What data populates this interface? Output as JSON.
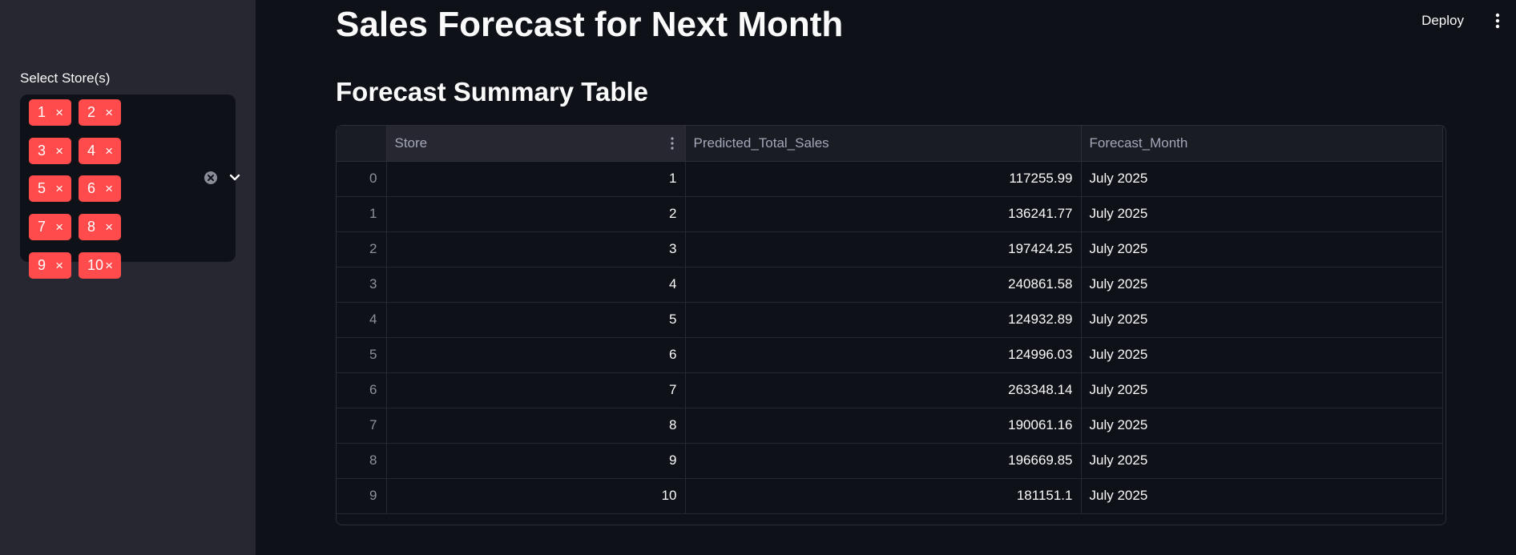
{
  "sidebar": {
    "multiselect": {
      "label": "Select Store(s)",
      "chips": [
        "1",
        "2",
        "3",
        "4",
        "5",
        "6",
        "7",
        "8",
        "9",
        "10"
      ],
      "chip_remove_glyph": "×",
      "clear_icon": "clear-circle-icon",
      "dropdown_icon": "chevron-down-icon"
    }
  },
  "header": {
    "deploy_label": "Deploy",
    "menu_icon": "vertical-kebab-icon"
  },
  "main": {
    "title": "Sales Forecast for Next Month",
    "subtitle": "Forecast Summary Table"
  },
  "table": {
    "columns": [
      "",
      "Store",
      "Predicted_Total_Sales",
      "Forecast_Month"
    ],
    "rows": [
      {
        "index": "0",
        "store": "1",
        "sales": "117255.99",
        "month": "July 2025"
      },
      {
        "index": "1",
        "store": "2",
        "sales": "136241.77",
        "month": "July 2025"
      },
      {
        "index": "2",
        "store": "3",
        "sales": "197424.25",
        "month": "July 2025"
      },
      {
        "index": "3",
        "store": "4",
        "sales": "240861.58",
        "month": "July 2025"
      },
      {
        "index": "4",
        "store": "5",
        "sales": "124932.89",
        "month": "July 2025"
      },
      {
        "index": "5",
        "store": "6",
        "sales": "124996.03",
        "month": "July 2025"
      },
      {
        "index": "6",
        "store": "7",
        "sales": "263348.14",
        "month": "July 2025"
      },
      {
        "index": "7",
        "store": "8",
        "sales": "190061.16",
        "month": "July 2025"
      },
      {
        "index": "8",
        "store": "9",
        "sales": "196669.85",
        "month": "July 2025"
      },
      {
        "index": "9",
        "store": "10",
        "sales": "181151.1",
        "month": "July 2025"
      }
    ]
  },
  "colors": {
    "background": "#0e1117",
    "sidebar": "#262730",
    "chip": "#ff4b4b",
    "text": "#fafafa",
    "muted": "#a3a8b8"
  }
}
